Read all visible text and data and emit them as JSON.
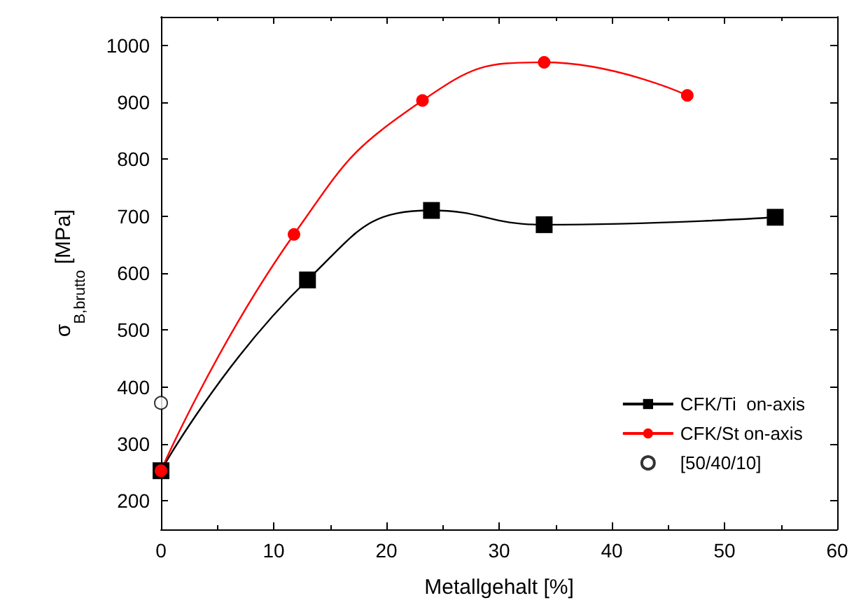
{
  "chart_data": {
    "type": "line",
    "xlabel": "Metallgehalt [%]",
    "ylabel": "σ$_{B,brutto}$ [MPa]",
    "xlim": [
      0,
      60
    ],
    "xticks": [
      0,
      10,
      20,
      30,
      40,
      50,
      60
    ],
    "ylim": [
      150,
      1050
    ],
    "yticks": [
      200,
      300,
      400,
      500,
      600,
      700,
      800,
      900,
      1000
    ],
    "grid": false,
    "legend": "bottom right",
    "series": [
      {
        "name": "CFK/Ti  on-axis",
        "color": "#000000",
        "marker": "square",
        "x": [
          0,
          13,
          24,
          34,
          54.5
        ],
        "values": [
          253,
          588,
          710,
          685,
          698
        ]
      },
      {
        "name": "CFK/St on-axis",
        "color": "#ff0000",
        "marker": "circle",
        "x": [
          0,
          11.8,
          23.2,
          34,
          46.7
        ],
        "values": [
          253,
          668,
          903,
          970,
          912
        ]
      },
      {
        "name": "[50/40/10]",
        "type": "scatter",
        "color": "#000000",
        "marker": "circle",
        "x": [
          0
        ],
        "values": [
          372
        ]
      }
    ]
  }
}
